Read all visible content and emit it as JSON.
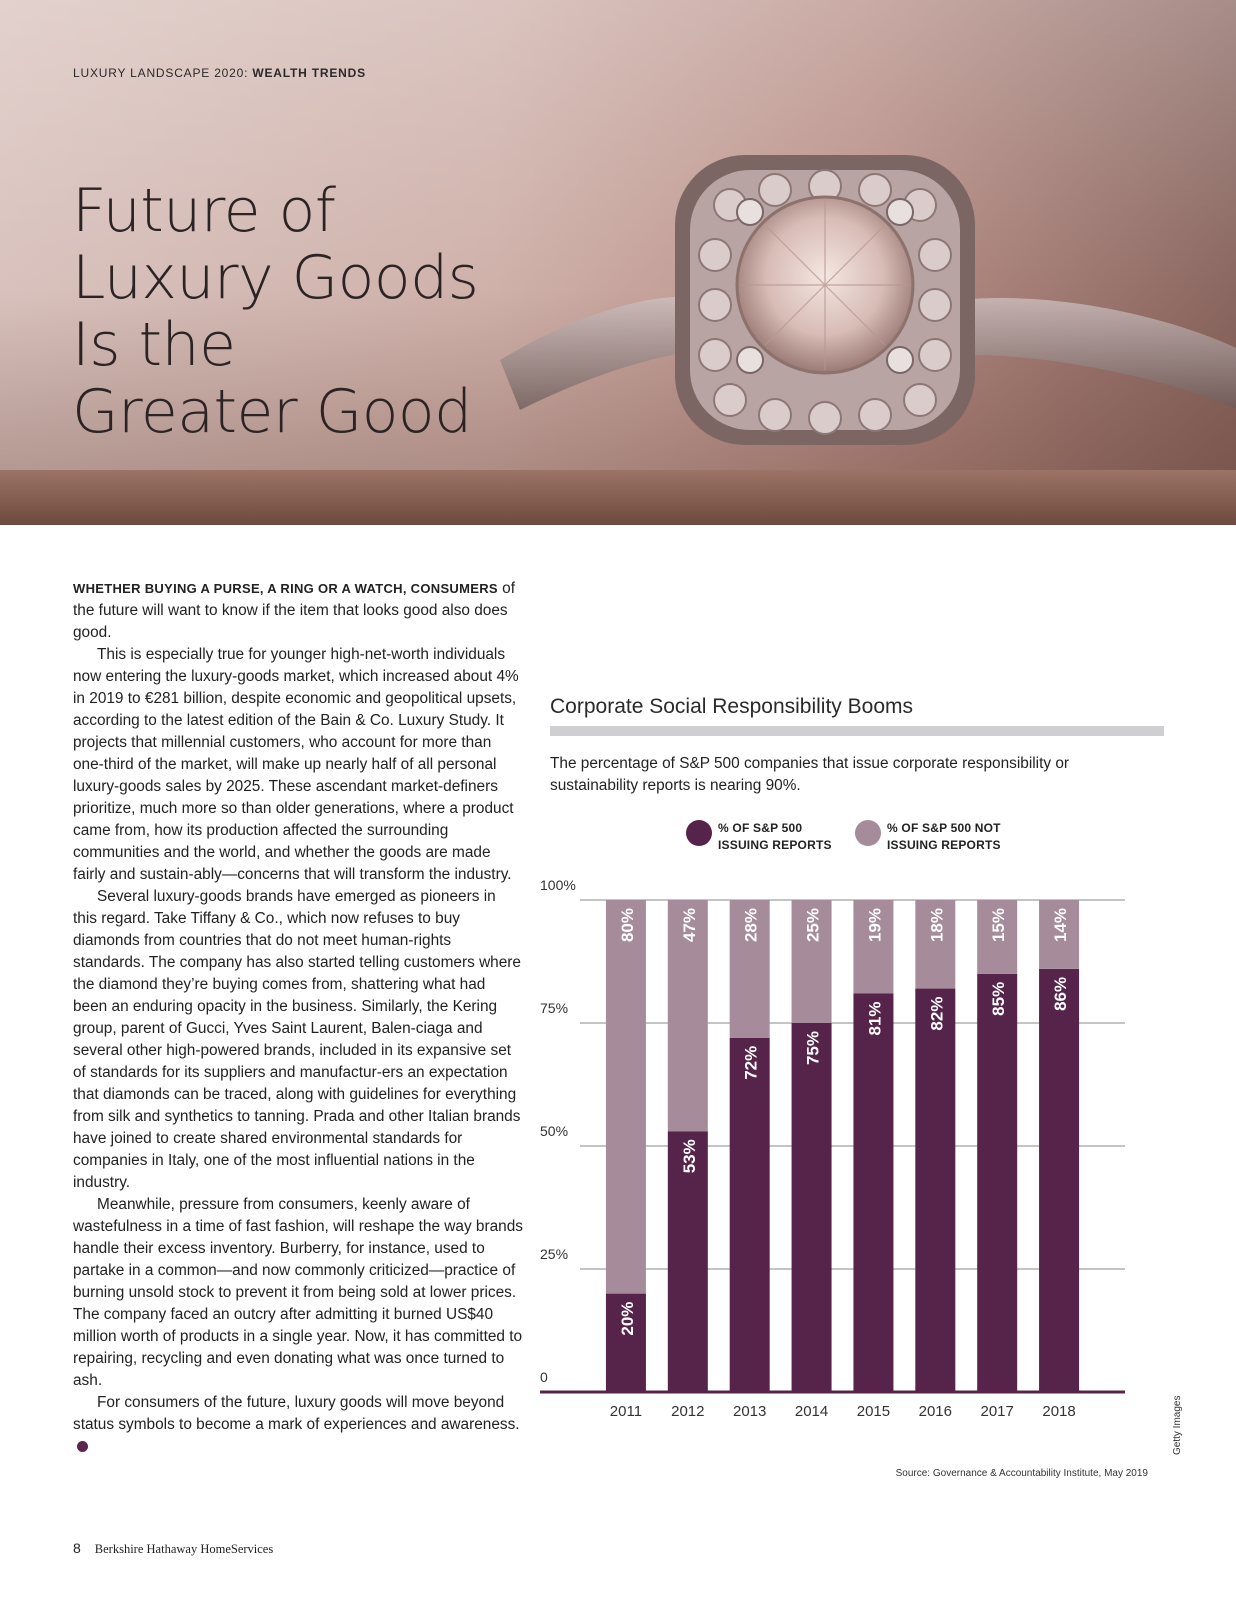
{
  "header": {
    "kicker_prefix": "LUXURY LANDSCAPE 2020: ",
    "kicker_section": "WEALTH TRENDS",
    "title_lines": [
      "Future of",
      "Luxury Goods",
      "Is the",
      "Greater Good"
    ]
  },
  "article": {
    "lead_caps": "WHETHER BUYING A PURSE, A RING OR A WATCH, CONSUMERS",
    "p1_rest": " of the future will want to know if the item that looks good also does good.",
    "p2": "This is especially true for younger high-net-worth individuals now entering the luxury-goods market, which increased about 4% in 2019 to €281 billion, despite economic and geopolitical upsets, according to the latest edition of the Bain & Co. Luxury Study. It projects that millennial customers, who account for more than one-third of the market, will make up nearly half of all personal luxury-goods sales by 2025. These ascendant market-definers prioritize, much more so than older generations, where a product came from, how its production affected the surrounding communities and the world, and whether the goods are made fairly and sustain-ably—concerns that will transform the industry.",
    "p3": "Several luxury-goods brands have emerged as pioneers in this regard. Take Tiffany & Co., which now refuses to buy diamonds from countries that do not meet human-rights standards. The company has also started telling customers where the diamond they’re buying comes from, shattering what had been an enduring opacity in the business. Similarly, the Kering group, parent of Gucci, Yves Saint Laurent, Balen-ciaga and several other high-powered brands, included in its expansive set of standards for its suppliers and manufactur-ers an expectation that diamonds can be traced, along with guidelines for everything from silk and synthetics to tanning. Prada and other Italian brands have joined to create shared environmental standards for companies in Italy, one of the most influential nations in the industry.",
    "p4": "Meanwhile, pressure from consumers, keenly aware of wastefulness in a time of fast fashion, will reshape the way brands handle their excess inventory. Burberry, for instance, used to partake in a common—and now commonly criticized—practice of burning unsold stock to prevent it from being sold at lower prices. The company faced an outcry after admitting it burned US$40 million worth of products in a single year. Now, it has committed to repairing, recycling and even donating what was once turned to ash.",
    "p5": "For consumers of the future, luxury goods will move beyond status symbols to become a mark of experiences and awareness."
  },
  "chart_data": {
    "type": "bar",
    "stacked": true,
    "title": "Corporate Social Responsibility Booms",
    "subtitle": "The percentage of S&P 500 companies that issue corporate responsibility or sustainability reports is nearing 90%.",
    "categories": [
      "2011",
      "2012",
      "2013",
      "2014",
      "2015",
      "2016",
      "2017",
      "2018"
    ],
    "series": [
      {
        "name": "% OF S&P 500\nISSUING REPORTS",
        "values": [
          20,
          53,
          72,
          75,
          81,
          82,
          85,
          86
        ],
        "labels": [
          "20%",
          "53%",
          "72%",
          "75%",
          "81%",
          "82%",
          "85%",
          "86%"
        ],
        "color": "#56244a"
      },
      {
        "name": "% OF S&P 500 NOT\nISSUING REPORTS",
        "values": [
          80,
          47,
          28,
          25,
          19,
          18,
          15,
          14
        ],
        "labels": [
          "80%",
          "47%",
          "28%",
          "25%",
          "19%",
          "18%",
          "15%",
          "14%"
        ],
        "color": "#a68c9a"
      }
    ],
    "yticks": [
      0,
      25,
      50,
      75,
      100
    ],
    "ytick_labels": [
      "0",
      "25%",
      "50%",
      "75%",
      "100%"
    ],
    "ylim": [
      0,
      100
    ],
    "grid": true,
    "legend_position": "top",
    "source": "Source: Governance & Accountability Institute, May 2019"
  },
  "photo_credit": "Getty Images",
  "footer": {
    "page_number": "8",
    "brand": "Berkshire Hathaway HomeServices"
  }
}
